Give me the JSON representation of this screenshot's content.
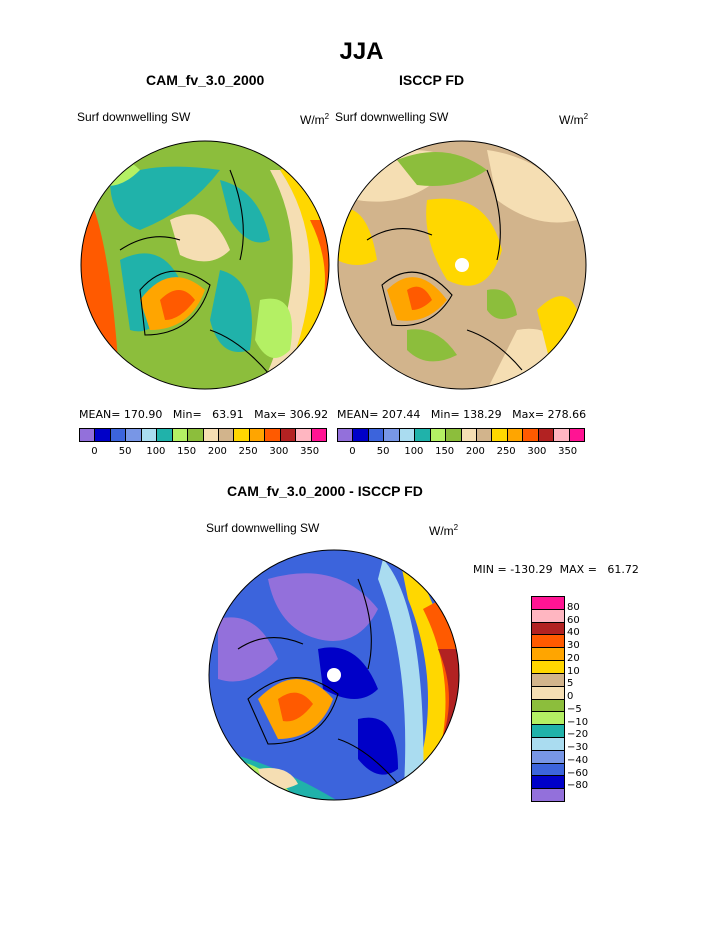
{
  "page_title": "JJA",
  "panels": {
    "model": {
      "title": "CAM_fv_3.0_2000",
      "variable": "Surf downwelling SW",
      "units_base": "W/m",
      "units_exp": "2",
      "mean_label": "MEAN=",
      "mean": "170.90",
      "min_label": "Min=",
      "min": "63.91",
      "max_label": "Max=",
      "max": "306.92"
    },
    "obs": {
      "title": "ISCCP FD",
      "variable": "Surf downwelling SW",
      "units_base": "W/m",
      "units_exp": "2",
      "mean_label": "MEAN=",
      "mean": "207.44",
      "min_label": "Min=",
      "min": "138.29",
      "max_label": "Max=",
      "max": "278.66"
    },
    "diff": {
      "title": "CAM_fv_3.0_2000 - ISCCP FD",
      "variable": "Surf downwelling SW",
      "units_base": "W/m",
      "units_exp": "2",
      "min_label": "MIN =",
      "min": "-130.29",
      "max_label": "MAX =",
      "max": "61.72"
    }
  },
  "colorbar_abs": {
    "colors": [
      "#9370db",
      "#0000c8",
      "#3c64dc",
      "#7896e6",
      "#aadcf0",
      "#20b2aa",
      "#b4f064",
      "#8cbe3c",
      "#f5deb3",
      "#d2b48c",
      "#ffd700",
      "#ffa500",
      "#ff5a00",
      "#b22222",
      "#ffb6c1",
      "#ff1493"
    ],
    "ticks": [
      "0",
      "50",
      "100",
      "150",
      "200",
      "250",
      "300",
      "350"
    ]
  },
  "colorbar_diff": {
    "colors": [
      "#9370db",
      "#0000c8",
      "#3c64dc",
      "#7896e6",
      "#aadcf0",
      "#20b2aa",
      "#b4f064",
      "#8cbe3c",
      "#f5deb3",
      "#d2b48c",
      "#ffd700",
      "#ffa500",
      "#ff5a00",
      "#b22222",
      "#ffb6c1",
      "#ff1493"
    ],
    "ticks": [
      "80",
      "60",
      "40",
      "30",
      "20",
      "10",
      "5",
      "0",
      "−5",
      "−10",
      "−20",
      "−30",
      "−40",
      "−60",
      "−80"
    ]
  },
  "map_colors": {
    "outline": "#000000",
    "pole_marker": "#ffffff"
  }
}
